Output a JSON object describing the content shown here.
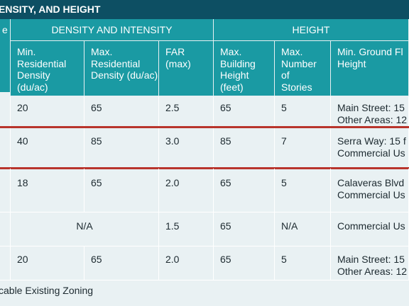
{
  "title": "ENSITY, AND HEIGHT",
  "header": {
    "first_col_fragment": "e",
    "group_density": "DENSITY AND INTENSITY",
    "group_height": "HEIGHT",
    "columns": [
      "Min. Residential Density (du/ac)",
      "Max. Residential Density (du/ac)",
      "FAR (max)",
      "Max. Building Height (feet)",
      "Max. Number of Stories",
      "Min. Ground Fl Height"
    ]
  },
  "rows": [
    {
      "min_density": "20",
      "max_density": "65",
      "far": "2.5",
      "height": "65",
      "stories": "5",
      "ground_floor": [
        "Main Street: 15",
        "Other Areas: 12"
      ]
    },
    {
      "min_density": "40",
      "max_density": "85",
      "far": "3.0",
      "height": "85",
      "stories": "7",
      "ground_floor": [
        "Serra Way: 15 f",
        "Commercial Us"
      ]
    },
    {
      "min_density": "18",
      "max_density": "65",
      "far": "2.0",
      "height": "65",
      "stories": "5",
      "ground_floor": [
        "Calaveras Blvd",
        "Commercial Us"
      ]
    },
    {
      "density_merged": "N/A",
      "far": "1.5",
      "height": "65",
      "stories": "N/A",
      "ground_floor": [
        "Commercial Us"
      ]
    },
    {
      "min_density": "20",
      "max_density": "65",
      "far": "2.0",
      "height": "65",
      "stories": "5",
      "ground_floor": [
        "Main Street: 15",
        "Other Areas: 12"
      ]
    }
  ],
  "footnote": "cable Existing Zoning",
  "colors": {
    "title_bg": "#0d4f63",
    "header_bg": "#1a9aa3",
    "body_bg": "#e9f1f3",
    "highlight_border": "#b8342c"
  }
}
